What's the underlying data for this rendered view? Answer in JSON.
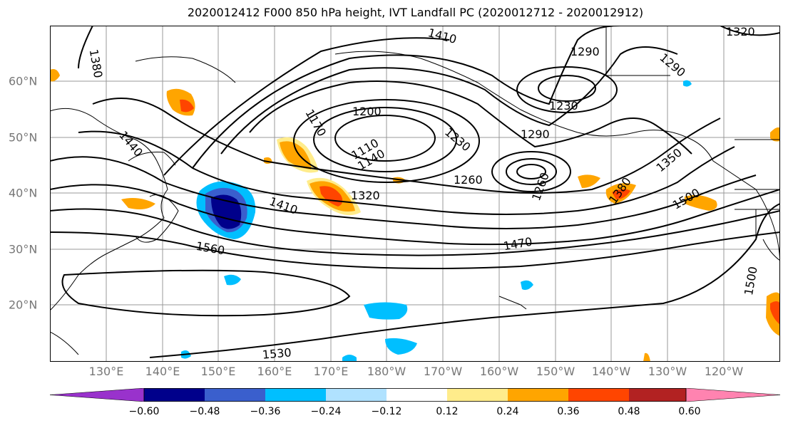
{
  "title": "2020012412 F000 850 hPa height, IVT Landfall PC (2020012712 - 2020012912)",
  "lat_labels": [
    "60°N",
    "50°N",
    "40°N",
    "30°N",
    "20°N"
  ],
  "lon_labels": [
    "130°E",
    "140°E",
    "150°E",
    "160°E",
    "170°E",
    "180°W",
    "170°W",
    "160°W",
    "150°W",
    "140°W",
    "130°W",
    "120°W"
  ],
  "contour_labels": [
    "1410",
    "1320",
    "1380",
    "1290",
    "1260",
    "1230",
    "1200",
    "1170",
    "1110",
    "1140",
    "1290",
    "1230",
    "1260",
    "1350",
    "1380",
    "1500",
    "1320",
    "1410",
    "1470",
    "1560",
    "1500",
    "1530",
    "1440",
    "1290"
  ],
  "colorbar": {
    "tick_labels": [
      "−0.60",
      "−0.48",
      "−0.36",
      "−0.24",
      "−0.12",
      "0.12",
      "0.24",
      "0.36",
      "0.48",
      "0.60"
    ],
    "colors": [
      "#9932cc",
      "#00008b",
      "#3a5fcd",
      "#00bfff",
      "#b0e2ff",
      "#ffffff",
      "#ffec8b",
      "#ffa500",
      "#ff4500",
      "#b22222",
      "#ff83b0"
    ]
  }
}
